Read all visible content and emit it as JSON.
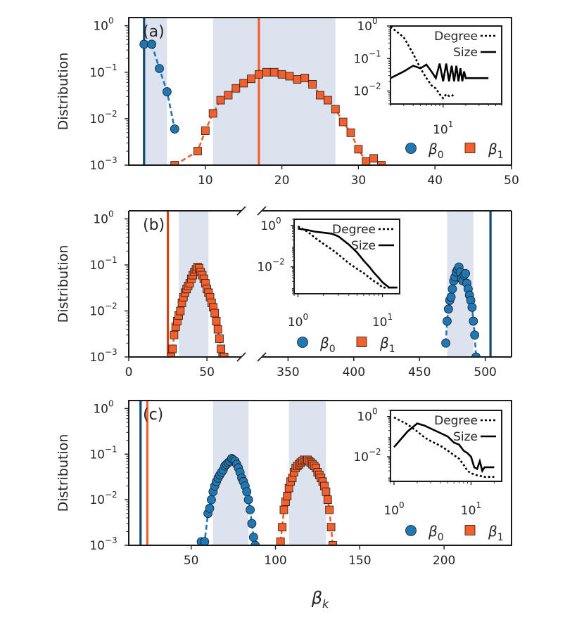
{
  "chart_data": [
    {
      "id": "a",
      "type": "scatter",
      "panel_label": "(a)",
      "xlabel": "",
      "ylabel": "Distribution",
      "yscale": "log",
      "ylim": [
        0.001,
        1.5
      ],
      "yticks": [
        {
          "value": 1,
          "base": "10",
          "exp": "0"
        },
        {
          "value": 0.1,
          "base": "10",
          "exp": "−1"
        },
        {
          "value": 0.01,
          "base": "10",
          "exp": "−2"
        },
        {
          "value": 0.001,
          "base": "10",
          "exp": "−3"
        }
      ],
      "xlim": [
        0,
        50
      ],
      "xticks": [
        {
          "value": 10,
          "label": "10"
        },
        {
          "value": 20,
          "label": "20"
        },
        {
          "value": 30,
          "label": "30"
        },
        {
          "value": 40,
          "label": "40"
        },
        {
          "value": 50,
          "label": "50"
        }
      ],
      "bands": [
        {
          "from": 2,
          "to": 5,
          "color": "#dce3ef"
        },
        {
          "from": 11,
          "to": 27,
          "color": "#dce3ef"
        }
      ],
      "vlines": [
        {
          "x": 2,
          "color": "#0d4a7a"
        },
        {
          "x": 17,
          "color": "#f4602b"
        }
      ],
      "series": [
        {
          "name": "β0",
          "marker": "circle",
          "color": "#1f77b4",
          "x": [
            2,
            3,
            4,
            5,
            6
          ],
          "y": [
            0.4,
            0.4,
            0.12,
            0.038,
            0.006
          ]
        },
        {
          "name": "β1",
          "marker": "square",
          "color": "#f4602b",
          "x": [
            6,
            9,
            10,
            11,
            12,
            13,
            14,
            15,
            16,
            17,
            18,
            19,
            20,
            21,
            22,
            23,
            24,
            25,
            26,
            27,
            28,
            29,
            30,
            31,
            32,
            33
          ],
          "y": [
            0.001,
            0.002,
            0.0055,
            0.013,
            0.025,
            0.032,
            0.045,
            0.058,
            0.072,
            0.09,
            0.1,
            0.1,
            0.09,
            0.082,
            0.07,
            0.075,
            0.055,
            0.032,
            0.025,
            0.016,
            0.0085,
            0.005,
            0.0022,
            0.0012,
            0.0014,
            0.001
          ]
        }
      ],
      "legend": {
        "location": "lower-right",
        "entries": [
          {
            "label_base": "β",
            "label_sub": "0",
            "marker": "circle",
            "color": "#1f77b4"
          },
          {
            "label_base": "β",
            "label_sub": "1",
            "marker": "square",
            "color": "#f4602b"
          }
        ]
      },
      "inset": {
        "xscale": "log",
        "yscale": "log",
        "xlim": [
          2,
          60
        ],
        "ylim": [
          0.004,
          1
        ],
        "xticks": [
          {
            "value": 10,
            "base": "10",
            "exp": "1"
          }
        ],
        "yticks": [
          {
            "value": 1,
            "base": "10",
            "exp": "0"
          },
          {
            "value": 0.1,
            "base": "10",
            "exp": "−1"
          },
          {
            "value": 0.01,
            "base": "10",
            "exp": "−2"
          }
        ],
        "series": [
          {
            "name": "Degree",
            "style": "dotted",
            "x": [
              2,
              3,
              4,
              5,
              6,
              7,
              8,
              9,
              10,
              11,
              12,
              13,
              14
            ],
            "y": [
              0.95,
              0.45,
              0.14,
              0.05,
              0.025,
              0.015,
              0.012,
              0.008,
              0.006,
              0.008,
              0.007,
              0.007,
              0.008
            ]
          },
          {
            "name": "Size",
            "style": "solid",
            "x": [
              2,
              3,
              4,
              5,
              6,
              7,
              8,
              9,
              10,
              11,
              12,
              13,
              14,
              15,
              16,
              17,
              18,
              19,
              20,
              22,
              25,
              30,
              40
            ],
            "y": [
              0.025,
              0.04,
              0.06,
              0.05,
              0.065,
              0.04,
              0.025,
              0.07,
              0.02,
              0.07,
              0.02,
              0.06,
              0.02,
              0.06,
              0.02,
              0.05,
              0.02,
              0.04,
              0.025,
              0.025,
              0.025,
              0.025,
              0.025
            ]
          }
        ],
        "legend": [
          "Degree",
          "Size"
        ]
      }
    },
    {
      "id": "b",
      "type": "scatter",
      "panel_label": "(b)",
      "xlabel": "",
      "ylabel": "Distribution",
      "yscale": "log",
      "ylim": [
        0.001,
        1.5
      ],
      "yticks": [
        {
          "value": 1,
          "base": "10",
          "exp": "0"
        },
        {
          "value": 0.1,
          "base": "10",
          "exp": "−1"
        },
        {
          "value": 0.01,
          "base": "10",
          "exp": "−2"
        },
        {
          "value": 0.001,
          "base": "10",
          "exp": "−3"
        }
      ],
      "broken_axis": true,
      "segments": [
        {
          "xlim": [
            0,
            72
          ]
        },
        {
          "xlim": [
            330,
            520
          ]
        }
      ],
      "xticks": [
        {
          "value": 0,
          "label": "0"
        },
        {
          "value": 50,
          "label": "50"
        },
        {
          "value": 350,
          "label": "350"
        },
        {
          "value": 400,
          "label": "400"
        },
        {
          "value": 450,
          "label": "450"
        },
        {
          "value": 500,
          "label": "500"
        }
      ],
      "bands": [
        {
          "from": 32,
          "to": 51,
          "color": "#dce3ef"
        },
        {
          "from": 471,
          "to": 491,
          "color": "#dce3ef"
        }
      ],
      "vlines": [
        {
          "x": 25,
          "color": "#d94010"
        },
        {
          "x": 504,
          "color": "#0d4a7a"
        }
      ],
      "series": [
        {
          "name": "β0",
          "marker": "circle",
          "color": "#1f77b4",
          "x": [
            470,
            471,
            472,
            473,
            474,
            475,
            476,
            477,
            478,
            479,
            480,
            481,
            482,
            483,
            484,
            485,
            486,
            487,
            488,
            489,
            490,
            491,
            492,
            493
          ],
          "y": [
            0.002,
            0.006,
            0.011,
            0.017,
            0.02,
            0.03,
            0.045,
            0.055,
            0.07,
            0.08,
            0.09,
            0.07,
            0.05,
            0.045,
            0.06,
            0.065,
            0.04,
            0.03,
            0.022,
            0.017,
            0.012,
            0.006,
            0.003,
            0.001
          ]
        },
        {
          "name": "β1",
          "marker": "square",
          "color": "#f4602b",
          "x": [
            27,
            28,
            29,
            30,
            31,
            32,
            33,
            34,
            35,
            36,
            37,
            38,
            39,
            40,
            41,
            42,
            43,
            44,
            45,
            46,
            47,
            48,
            49,
            50,
            51,
            52,
            53,
            54,
            55,
            56,
            57,
            58,
            59,
            60,
            61
          ],
          "y": [
            0.001,
            0.0015,
            0.003,
            0.0045,
            0.006,
            0.008,
            0.01,
            0.015,
            0.02,
            0.025,
            0.03,
            0.035,
            0.04,
            0.05,
            0.06,
            0.07,
            0.08,
            0.09,
            0.085,
            0.07,
            0.06,
            0.05,
            0.04,
            0.03,
            0.025,
            0.02,
            0.015,
            0.012,
            0.009,
            0.006,
            0.004,
            0.0025,
            0.0015,
            0.001,
            0.001
          ]
        }
      ],
      "legend": {
        "location": "lower-right",
        "entries": [
          {
            "label_base": "β",
            "label_sub": "0",
            "marker": "circle",
            "color": "#1f77b4"
          },
          {
            "label_base": "β",
            "label_sub": "1",
            "marker": "square",
            "color": "#f4602b"
          }
        ]
      },
      "inset": {
        "xscale": "log",
        "yscale": "log",
        "xlim": [
          0.9,
          16
        ],
        "ylim": [
          0.0005,
          2
        ],
        "xticks": [
          {
            "value": 1,
            "base": "10",
            "exp": "0"
          },
          {
            "value": 10,
            "base": "10",
            "exp": "1"
          }
        ],
        "yticks": [
          {
            "value": 1,
            "base": "10",
            "exp": "0"
          },
          {
            "value": 0.01,
            "base": "10",
            "exp": "−2"
          }
        ],
        "series": [
          {
            "name": "Degree",
            "style": "dotted",
            "x": [
              1,
              1.3,
              1.6,
              2,
              2.5,
              3,
              4,
              5,
              6,
              7,
              8,
              9,
              10,
              12,
              15
            ],
            "y": [
              0.9,
              0.5,
              0.25,
              0.13,
              0.07,
              0.04,
              0.015,
              0.008,
              0.005,
              0.003,
              0.002,
              0.0015,
              0.001,
              0.001,
              0.001
            ]
          },
          {
            "name": "Size",
            "style": "solid",
            "x": [
              1,
              1.3,
              1.6,
              2,
              2.5,
              3,
              4,
              5,
              6,
              7,
              8,
              9,
              10,
              12,
              15
            ],
            "y": [
              0.7,
              0.6,
              0.5,
              0.45,
              0.4,
              0.3,
              0.12,
              0.05,
              0.02,
              0.01,
              0.005,
              0.003,
              0.0018,
              0.001,
              0.001
            ]
          }
        ],
        "legend": [
          "Degree",
          "Size"
        ]
      }
    },
    {
      "id": "c",
      "type": "scatter",
      "panel_label": "(c)",
      "xlabel_base": "β",
      "xlabel_sub": "k",
      "ylabel": "Distribution",
      "yscale": "log",
      "ylim": [
        0.001,
        1.5
      ],
      "yticks": [
        {
          "value": 1,
          "base": "10",
          "exp": "0"
        },
        {
          "value": 0.1,
          "base": "10",
          "exp": "−1"
        },
        {
          "value": 0.01,
          "base": "10",
          "exp": "−2"
        },
        {
          "value": 0.001,
          "base": "10",
          "exp": "−3"
        }
      ],
      "xlim": [
        13,
        240
      ],
      "xticks": [
        {
          "value": 50,
          "label": "50"
        },
        {
          "value": 100,
          "label": "100"
        },
        {
          "value": 150,
          "label": "150"
        },
        {
          "value": 200,
          "label": "200"
        }
      ],
      "bands": [
        {
          "from": 63,
          "to": 84,
          "color": "#dce3ef"
        },
        {
          "from": 108,
          "to": 130,
          "color": "#dce3ef"
        }
      ],
      "vlines": [
        {
          "x": 20,
          "color": "#0d4a7a"
        },
        {
          "x": 24,
          "color": "#f4602b"
        }
      ],
      "series": [
        {
          "name": "β0",
          "marker": "circle",
          "color": "#1f77b4",
          "x": [
            56,
            58,
            60,
            61,
            62,
            63,
            64,
            65,
            66,
            67,
            68,
            69,
            70,
            71,
            72,
            73,
            74,
            75,
            76,
            77,
            78,
            79,
            80,
            81,
            82,
            83,
            84,
            85,
            86,
            87,
            88
          ],
          "y": [
            0.0012,
            0.0012,
            0.005,
            0.0065,
            0.01,
            0.015,
            0.02,
            0.025,
            0.03,
            0.035,
            0.04,
            0.045,
            0.055,
            0.06,
            0.065,
            0.07,
            0.08,
            0.075,
            0.07,
            0.06,
            0.05,
            0.04,
            0.03,
            0.025,
            0.02,
            0.015,
            0.01,
            0.006,
            0.003,
            0.0015,
            0.001
          ]
        },
        {
          "name": "β1",
          "marker": "square",
          "color": "#f4602b",
          "x": [
            103,
            104,
            105,
            106,
            107,
            108,
            109,
            110,
            111,
            112,
            113,
            114,
            115,
            116,
            117,
            118,
            119,
            120,
            121,
            122,
            123,
            124,
            125,
            126,
            127,
            128,
            129,
            130,
            131,
            132,
            133,
            134
          ],
          "y": [
            0.0012,
            0.0025,
            0.006,
            0.009,
            0.012,
            0.018,
            0.025,
            0.03,
            0.04,
            0.05,
            0.055,
            0.06,
            0.065,
            0.07,
            0.075,
            0.07,
            0.075,
            0.07,
            0.065,
            0.06,
            0.055,
            0.05,
            0.04,
            0.035,
            0.03,
            0.025,
            0.02,
            0.015,
            0.01,
            0.006,
            0.0025,
            0.001
          ]
        }
      ],
      "legend": {
        "location": "lower-right",
        "entries": [
          {
            "label_base": "β",
            "label_sub": "0",
            "marker": "circle",
            "color": "#1f77b4"
          },
          {
            "label_base": "β",
            "label_sub": "1",
            "marker": "square",
            "color": "#f4602b"
          }
        ]
      },
      "inset": {
        "xscale": "log",
        "yscale": "log",
        "xlim": [
          0.9,
          25
        ],
        "ylim": [
          0.0006,
          2
        ],
        "xticks": [
          {
            "value": 1,
            "base": "10",
            "exp": "0"
          },
          {
            "value": 10,
            "base": "10",
            "exp": "1"
          }
        ],
        "yticks": [
          {
            "value": 1,
            "base": "10",
            "exp": "0"
          },
          {
            "value": 0.01,
            "base": "10",
            "exp": "−2"
          }
        ],
        "series": [
          {
            "name": "Degree",
            "style": "dotted",
            "x": [
              1,
              1.5,
              2,
              2.5,
              3,
              4,
              5,
              6,
              7,
              8,
              9,
              10,
              12,
              15,
              20
            ],
            "y": [
              0.9,
              0.4,
              0.18,
              0.09,
              0.06,
              0.035,
              0.02,
              0.012,
              0.008,
              0.004,
              0.002,
              0.0015,
              0.0012,
              0.001,
              0.001
            ]
          },
          {
            "name": "Size",
            "style": "solid",
            "x": [
              1,
              1.5,
              2,
              2.5,
              3,
              4,
              5,
              6,
              7,
              8,
              9,
              10,
              11,
              12,
              13,
              14,
              15,
              17,
              20
            ],
            "y": [
              0.03,
              0.18,
              0.45,
              0.35,
              0.25,
              0.15,
              0.1,
              0.05,
              0.04,
              0.02,
              0.015,
              0.01,
              0.003,
              0.0025,
              0.006,
              0.002,
              0.003,
              0.003,
              0.003
            ]
          }
        ],
        "legend": [
          "Degree",
          "Size"
        ]
      }
    }
  ]
}
